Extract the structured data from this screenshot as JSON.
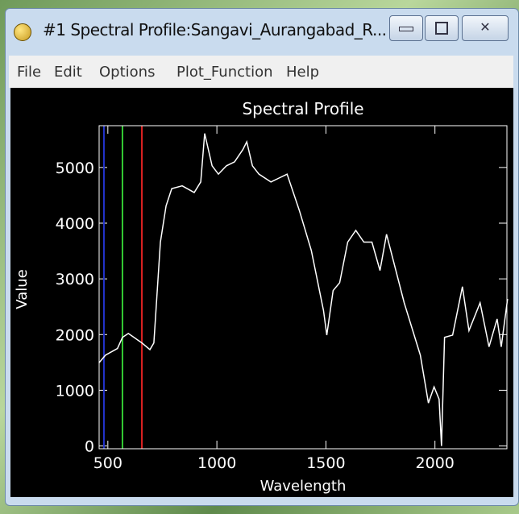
{
  "window": {
    "title": "#1 Spectral Profile:Sangavi_Aurangabad_R...",
    "menu": [
      "File",
      "Edit",
      "Options",
      "Plot_Function",
      "Help"
    ]
  },
  "chart_data": {
    "type": "line",
    "title": "Spectral Profile",
    "x_label": "Wavelength",
    "y_label": "Value",
    "x": [
      459,
      489,
      544,
      567,
      594,
      656,
      693,
      711,
      741,
      767,
      793,
      841,
      896,
      926,
      944,
      978,
      1007,
      1044,
      1081,
      1119,
      1137,
      1163,
      1193,
      1248,
      1285,
      1322,
      1378,
      1433,
      1489,
      1504,
      1533,
      1563,
      1600,
      1637,
      1674,
      1711,
      1748,
      1778,
      1859,
      1933,
      1970,
      1996,
      2019,
      2030,
      2044,
      2081,
      2126,
      2156,
      2207,
      2248,
      2285,
      2304,
      2333
    ],
    "series": [
      {
        "name": "Value",
        "color": "#ffffff",
        "values": [
          1490,
          1630,
          1750,
          1950,
          2020,
          1850,
          1730,
          1850,
          3660,
          4310,
          4620,
          4670,
          4550,
          4740,
          5610,
          5030,
          4880,
          5030,
          5100,
          5320,
          5460,
          5030,
          4880,
          4740,
          4810,
          4880,
          4230,
          3510,
          2430,
          1990,
          2790,
          2930,
          3660,
          3870,
          3660,
          3660,
          3150,
          3800,
          2570,
          1630,
          770,
          1060,
          840,
          0,
          1950,
          1990,
          2860,
          2070,
          2570,
          1780,
          2280,
          1780,
          2640
        ]
      }
    ],
    "markers": [
      {
        "value": 482,
        "color": "#2233cc"
      },
      {
        "value": 567,
        "color": "#33cc33"
      },
      {
        "value": 656,
        "color": "#dd2222"
      }
    ],
    "xlim": [
      460,
      2330
    ],
    "ylim": [
      -50,
      5750
    ],
    "xticks": [
      500,
      1000,
      1500,
      2000
    ],
    "yticks": [
      0,
      1000,
      2000,
      3000,
      4000,
      5000
    ]
  }
}
